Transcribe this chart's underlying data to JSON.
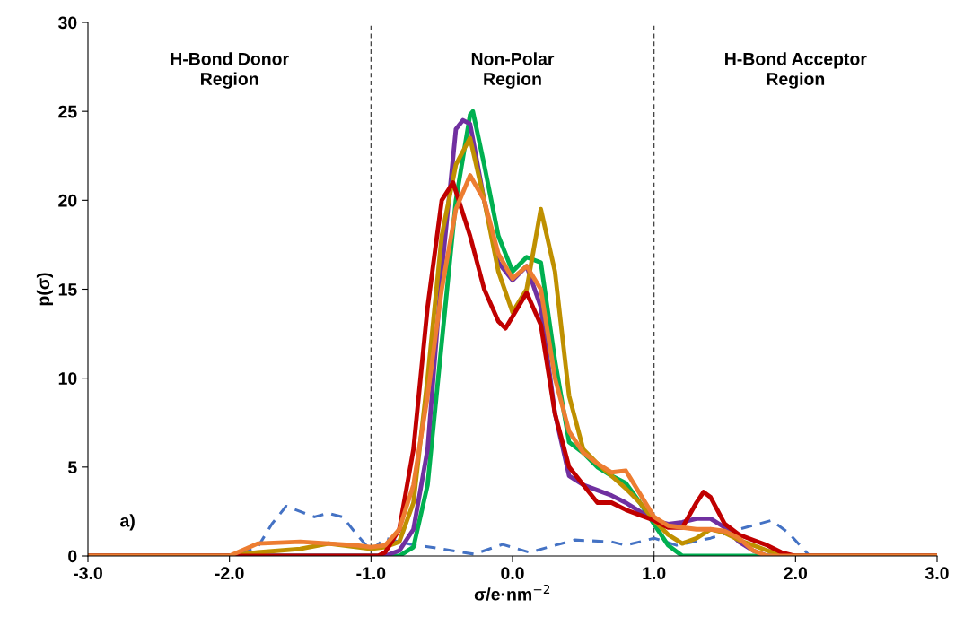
{
  "chart_data": {
    "type": "line",
    "xlabel": "σ/e·nm$^{−2}$",
    "ylabel": "p(σ)",
    "xlim": [
      -3,
      3
    ],
    "xticks": [
      {
        "value": -3,
        "label": "-3.0"
      },
      {
        "value": -2,
        "label": "-2.0"
      },
      {
        "value": -1,
        "label": "-1.0"
      },
      {
        "value": 0,
        "label": "0.0"
      },
      {
        "value": 1,
        "label": "1.0"
      },
      {
        "value": 2,
        "label": "2.0"
      },
      {
        "value": 3,
        "label": "3.0"
      }
    ],
    "ylim": [
      0,
      30
    ],
    "yticks": [
      0,
      5,
      10,
      15,
      20,
      25,
      30
    ],
    "grid": false,
    "legend": false,
    "marker": "none",
    "ref_lines": [
      {
        "axis": "x",
        "value": -1,
        "color": "#404040",
        "line_style": "dashed"
      },
      {
        "axis": "x",
        "value": 1,
        "color": "#404040",
        "line_style": "dashed"
      }
    ],
    "annotations": [
      "H-Bond Donor\nRegion",
      "Non-Polar\nRegion",
      "H-Bond Acceptor\nRegion",
      "a)"
    ],
    "series": [
      {
        "color": "#4472c4",
        "line_style": "dashed",
        "x": [
          -3,
          -2,
          -1.8,
          -1.7,
          -1.6,
          -1.5,
          -1.4,
          -1.3,
          -1.2,
          -1.1,
          -1.0,
          -0.9,
          -0.72,
          -0.5,
          -0.27,
          -0.07,
          0.12,
          0.3,
          0.44,
          0.7,
          0.8,
          1.0,
          1.16,
          1.4,
          1.6,
          1.83,
          1.95,
          2.1,
          3
        ],
        "values": [
          0,
          0,
          0.5,
          1.8,
          2.8,
          2.5,
          2.2,
          2.4,
          2.2,
          1.2,
          0.3,
          1.0,
          0.65,
          0.4,
          0.1,
          0.65,
          0.2,
          0.6,
          0.9,
          0.8,
          0.6,
          1.0,
          0.6,
          1.0,
          1.5,
          2.0,
          1.3,
          0,
          0
        ]
      },
      {
        "color": "#00b050",
        "line_style": "solid",
        "x": [
          -3,
          -1,
          -0.8,
          -0.7,
          -0.6,
          -0.5,
          -0.4,
          -0.3,
          -0.28,
          -0.2,
          -0.1,
          0,
          0.1,
          0.2,
          0.3,
          0.4,
          0.5,
          0.6,
          0.7,
          0.8,
          0.9,
          1.0,
          1.1,
          1.2,
          3
        ],
        "values": [
          0,
          0,
          0,
          0.5,
          4,
          12,
          20,
          24.8,
          25,
          22,
          18,
          16,
          16.8,
          16.5,
          11,
          6.4,
          5.8,
          5,
          4.5,
          4.1,
          3,
          1.8,
          0.6,
          0,
          0
        ]
      },
      {
        "color": "#7030a0",
        "line_style": "solid",
        "x": [
          -3,
          -0.9,
          -0.8,
          -0.7,
          -0.6,
          -0.5,
          -0.4,
          -0.35,
          -0.3,
          -0.2,
          -0.1,
          0,
          0.1,
          0.2,
          0.3,
          0.4,
          0.5,
          0.6,
          0.7,
          0.8,
          0.9,
          1.0,
          1.1,
          1.2,
          1.3,
          1.4,
          1.5,
          1.6,
          1.7,
          1.8,
          3
        ],
        "values": [
          0,
          0,
          0.3,
          1.5,
          6,
          16,
          24,
          24.5,
          24.3,
          20,
          16.5,
          15.5,
          16.3,
          14,
          8,
          4.5,
          4,
          3.7,
          3.4,
          3,
          2.5,
          2,
          1.8,
          1.9,
          2.1,
          2.1,
          1.6,
          0.8,
          0.3,
          0,
          0
        ]
      },
      {
        "color": "#bf9000",
        "line_style": "solid",
        "x": [
          -3,
          -2,
          -1.8,
          -1.5,
          -1.3,
          -1.1,
          -1,
          -0.9,
          -0.8,
          -0.7,
          -0.6,
          -0.5,
          -0.4,
          -0.3,
          -0.2,
          -0.1,
          0,
          0.1,
          0.2,
          0.3,
          0.4,
          0.5,
          0.6,
          0.7,
          0.8,
          0.9,
          1.0,
          1.1,
          1.2,
          1.3,
          1.4,
          1.5,
          1.6,
          1.7,
          1.8,
          1.9,
          2.0,
          3
        ],
        "values": [
          0,
          0,
          0.2,
          0.4,
          0.7,
          0.5,
          0.4,
          0.5,
          0.8,
          3,
          10,
          18,
          22,
          23.5,
          20,
          16,
          13.7,
          15,
          19.5,
          16,
          9,
          6,
          5.2,
          4.5,
          3.8,
          3,
          2,
          1.2,
          0.7,
          1,
          1.5,
          1.3,
          0.9,
          0.6,
          0.3,
          0.1,
          0,
          0
        ]
      },
      {
        "color": "#c00000",
        "line_style": "solid",
        "x": [
          -3,
          -0.95,
          -0.9,
          -0.8,
          -0.7,
          -0.6,
          -0.5,
          -0.42,
          -0.3,
          -0.2,
          -0.1,
          -0.05,
          0.1,
          0.2,
          0.3,
          0.4,
          0.5,
          0.6,
          0.7,
          0.8,
          0.9,
          1.0,
          1.1,
          1.2,
          1.3,
          1.35,
          1.4,
          1.5,
          1.6,
          1.7,
          1.8,
          1.9,
          2.0,
          3
        ],
        "values": [
          0,
          0,
          0.2,
          1.5,
          6,
          14,
          20,
          21,
          18,
          15,
          13.2,
          12.8,
          14.8,
          13,
          8,
          5,
          4,
          3,
          3,
          2.6,
          2.3,
          2,
          1.6,
          1.6,
          3,
          3.6,
          3.3,
          1.8,
          1.2,
          0.9,
          0.6,
          0.2,
          0,
          0
        ]
      },
      {
        "color": "#ed7d31",
        "line_style": "solid",
        "x": [
          -3,
          -2,
          -1.8,
          -1.5,
          -1.3,
          -1.1,
          -1,
          -0.9,
          -0.8,
          -0.7,
          -0.6,
          -0.5,
          -0.4,
          -0.3,
          -0.2,
          -0.1,
          0,
          0.1,
          0.2,
          0.3,
          0.4,
          0.5,
          0.6,
          0.7,
          0.8,
          0.9,
          1.0,
          1.1,
          1.2,
          1.3,
          1.4,
          1.5,
          1.6,
          1.7,
          1.8,
          3
        ],
        "values": [
          0,
          0,
          0.7,
          0.8,
          0.7,
          0.6,
          0.5,
          0.6,
          1.5,
          4,
          9,
          15,
          19.5,
          21.4,
          20,
          17,
          15.6,
          16.3,
          15,
          10,
          7,
          5.8,
          5.2,
          4.7,
          4.8,
          3.5,
          2.2,
          1.7,
          1.6,
          1.5,
          1.5,
          1.4,
          1.0,
          0.3,
          0,
          0
        ]
      }
    ]
  }
}
